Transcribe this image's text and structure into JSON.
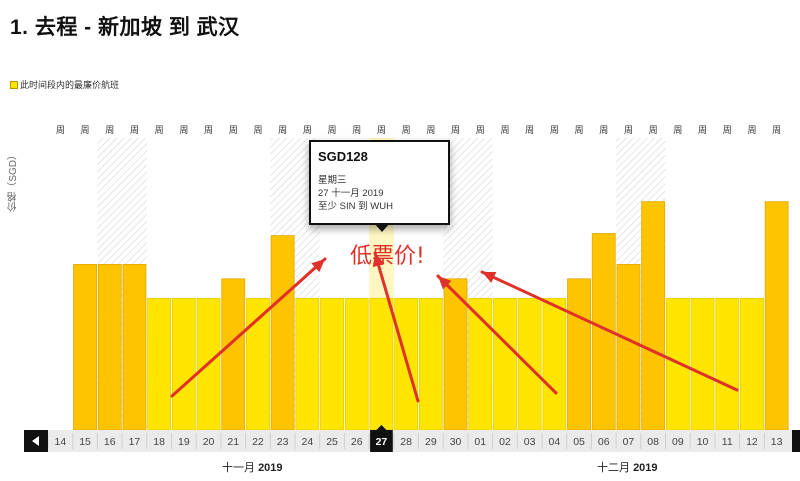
{
  "header": {
    "title": "1. 去程 - 新加坡 到 武汉"
  },
  "legend": {
    "label": "此时间段内的最廉价航班",
    "color": "#ffe500"
  },
  "axis": {
    "ylabel": "价格（SGD）",
    "week_label": "周"
  },
  "tooltip": {
    "price": "SGD128",
    "weekday": "星期三",
    "date": "27 十一月 2019",
    "route": "至少 SIN 到 WUH"
  },
  "annotation": {
    "text": "低票价!"
  },
  "months": [
    {
      "label": "十一月",
      "year": "2019"
    },
    {
      "label": "十二月",
      "year": "2019"
    }
  ],
  "nav": {
    "prev_icon": "chevron-left-icon",
    "next_icon": "chevron-right-icon"
  },
  "colors": {
    "cheapest": "#ffe500",
    "other": "#ffc400",
    "selected": "#fff3a6",
    "arrow": "#e0302a"
  },
  "chart_data": {
    "type": "bar",
    "categories": [
      "14",
      "15",
      "16",
      "17",
      "18",
      "19",
      "20",
      "21",
      "22",
      "23",
      "24",
      "25",
      "26",
      "27",
      "28",
      "29",
      "30",
      "01",
      "02",
      "03",
      "04",
      "05",
      "06",
      "07",
      "08",
      "09",
      "10",
      "11",
      "12",
      "13"
    ],
    "series": [
      {
        "values": [
          null,
          161,
          161,
          161,
          128,
          128,
          128,
          147,
          128,
          189,
          128,
          128,
          128,
          128,
          128,
          128,
          147,
          128,
          128,
          128,
          128,
          147,
          191,
          161,
          222,
          128,
          128,
          128,
          128,
          222
        ],
        "cheapest": [
          false,
          false,
          false,
          false,
          true,
          true,
          true,
          false,
          true,
          false,
          true,
          true,
          true,
          true,
          true,
          true,
          false,
          true,
          true,
          true,
          true,
          false,
          false,
          false,
          false,
          true,
          true,
          true,
          true,
          false
        ]
      }
    ],
    "selected": "27",
    "weekend_shaded": [
      "16",
      "17",
      "23",
      "24",
      "30",
      "01",
      "07",
      "08"
    ],
    "ylabel": "价格（SGD）",
    "ylim": [
      0,
      350
    ],
    "grid": false
  }
}
